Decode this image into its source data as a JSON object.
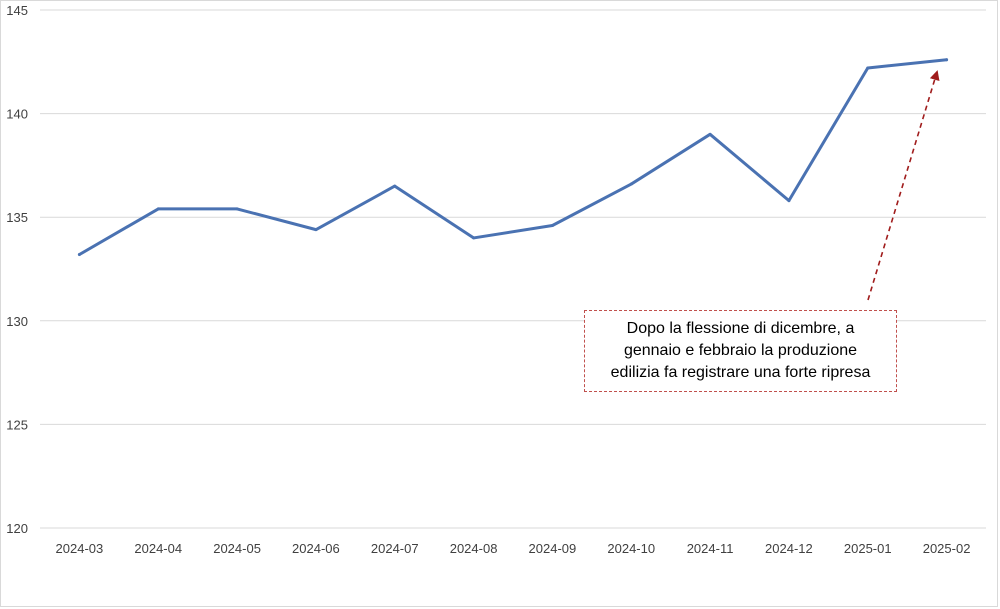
{
  "chart_data": {
    "type": "line",
    "title": "",
    "xlabel": "",
    "ylabel": "",
    "categories": [
      "2024-03",
      "2024-04",
      "2024-05",
      "2024-06",
      "2024-07",
      "2024-08",
      "2024-09",
      "2024-10",
      "2024-11",
      "2024-12",
      "2025-01",
      "2025-02"
    ],
    "series": [
      {
        "values": [
          133.2,
          135.4,
          135.4,
          134.4,
          136.5,
          134.0,
          134.6,
          136.6,
          139.0,
          135.8,
          142.2,
          142.6
        ]
      }
    ],
    "ylim": [
      120,
      145
    ],
    "yticks": [
      120,
      125,
      130,
      135,
      140,
      145
    ],
    "grid": true,
    "legend": "none",
    "annotations": [
      {
        "text": "Dopo la flessione di dicembre, a\ngennaio e febbraio la produzione\nedilizia fa registrare una forte ripresa",
        "points_to": "2025-02"
      }
    ]
  },
  "colors": {
    "series": "#4a72b2",
    "annotation_arrow": "#a01c1c",
    "annotation_border": "#c0504d",
    "grid": "#d9d9d9",
    "text": "#404040"
  }
}
